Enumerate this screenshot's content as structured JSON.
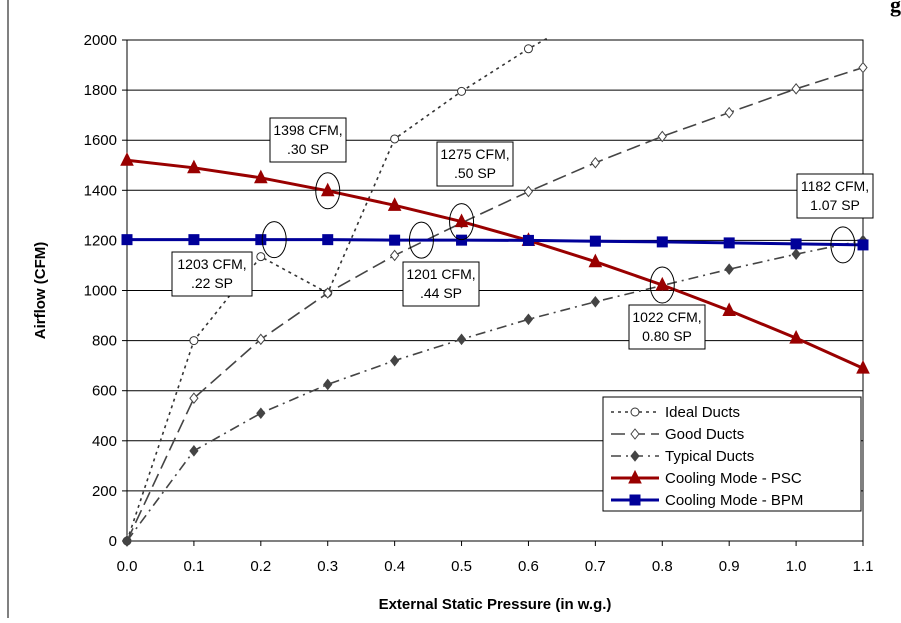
{
  "page": {
    "clipped_title_fragment": "g"
  },
  "chart_data": {
    "type": "line",
    "xlabel": "External Static Pressure (in w.g.)",
    "ylabel": "Airflow (CFM)",
    "xlim": [
      0,
      1.1
    ],
    "ylim": [
      0,
      2000
    ],
    "x_ticks": [
      "0.0",
      "0.1",
      "0.2",
      "0.3",
      "0.4",
      "0.5",
      "0.6",
      "0.7",
      "0.8",
      "0.9",
      "1.0",
      "1.1"
    ],
    "y_ticks": [
      "0",
      "200",
      "400",
      "600",
      "800",
      "1000",
      "1200",
      "1400",
      "1600",
      "1800",
      "2000"
    ],
    "grid": true,
    "legend_position": "bottom-right",
    "series": [
      {
        "name": "Ideal Ducts",
        "color": "#333333",
        "dash": "dot",
        "marker": "open-circle",
        "x": [
          0,
          0.1,
          0.2,
          0.3,
          0.4,
          0.5,
          0.6,
          0.63
        ],
        "y": [
          0,
          800,
          1135,
          990,
          1605,
          1795,
          1965,
          2010
        ]
      },
      {
        "name": "Good Ducts",
        "color": "#444444",
        "dash": "long-dash",
        "marker": "open-diamond",
        "x": [
          0,
          0.1,
          0.2,
          0.3,
          0.4,
          0.5,
          0.6,
          0.7,
          0.8,
          0.9,
          1.0,
          1.1
        ],
        "y": [
          0,
          570,
          805,
          990,
          1140,
          1270,
          1395,
          1510,
          1615,
          1710,
          1805,
          1890
        ]
      },
      {
        "name": "Typical Ducts",
        "color": "#444444",
        "dash": "dash-dot",
        "marker": "filled-diamond",
        "x": [
          0,
          0.1,
          0.2,
          0.3,
          0.4,
          0.5,
          0.6,
          0.7,
          0.8,
          0.9,
          1.0,
          1.1
        ],
        "y": [
          0,
          360,
          510,
          625,
          720,
          805,
          885,
          955,
          1020,
          1085,
          1145,
          1200
        ]
      },
      {
        "name": "Cooling Mode - PSC",
        "color": "#990000",
        "dash": "solid",
        "marker": "triangle",
        "x": [
          0,
          0.1,
          0.2,
          0.3,
          0.4,
          0.5,
          0.6,
          0.7,
          0.8,
          0.9,
          1.0,
          1.1
        ],
        "y": [
          1520,
          1490,
          1450,
          1398,
          1340,
          1275,
          1200,
          1115,
          1022,
          920,
          810,
          690
        ]
      },
      {
        "name": "Cooling Mode - BPM",
        "color": "#000099",
        "dash": "solid",
        "marker": "square",
        "x": [
          0,
          0.1,
          0.2,
          0.3,
          0.4,
          0.5,
          0.6,
          0.7,
          0.8,
          0.9,
          1.0,
          1.1
        ],
        "y": [
          1203,
          1203,
          1203,
          1203,
          1201,
          1201,
          1200,
          1197,
          1194,
          1190,
          1186,
          1182
        ]
      }
    ],
    "annotations": [
      {
        "lines": [
          "1398 CFM,",
          ".30 SP"
        ],
        "x": 0.3,
        "y": 1398
      },
      {
        "lines": [
          "1275 CFM,",
          ".50 SP"
        ],
        "x": 0.5,
        "y": 1275
      },
      {
        "lines": [
          "1182 CFM,",
          "1.07 SP"
        ],
        "x": 1.07,
        "y": 1182
      },
      {
        "lines": [
          "1203 CFM,",
          ".22 SP"
        ],
        "x": 0.22,
        "y": 1203
      },
      {
        "lines": [
          "1201 CFM,",
          ".44 SP"
        ],
        "x": 0.44,
        "y": 1201
      },
      {
        "lines": [
          "1022 CFM,",
          "0.80 SP"
        ],
        "x": 0.8,
        "y": 1022
      }
    ]
  }
}
